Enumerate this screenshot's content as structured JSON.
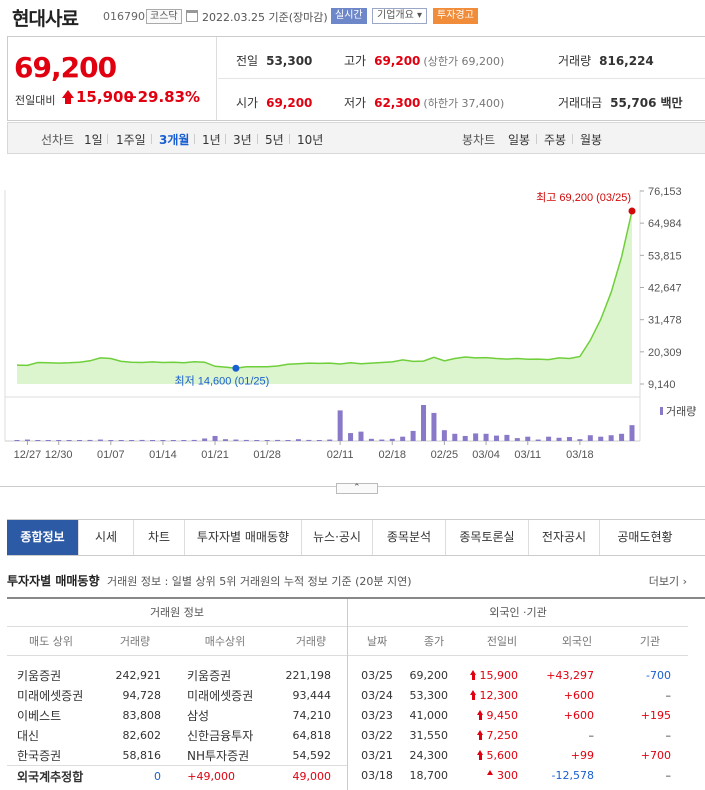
{
  "header": {
    "name": "현대사료",
    "code": "016790",
    "market": "코스닥",
    "date": "2022.03.25",
    "date_suffix": "기준(장마감)",
    "live_badge": "실시간",
    "corp_info": "기업개요 ▾",
    "warning_badge": "투자경고"
  },
  "quote": {
    "price": "69,200",
    "change_label": "전일대비",
    "change": "15,900",
    "change_pct": "+29.83%",
    "prev_close_label": "전일",
    "prev_close": "53,300",
    "high_label": "고가",
    "high": "69,200",
    "upper_limit": "(상한가 69,200)",
    "volume_label": "거래량",
    "volume": "816,224",
    "open_label": "시가",
    "open": "69,200",
    "low_label": "저가",
    "low": "62,300",
    "lower_limit": "(하한가 37,400)",
    "amount_label": "거래대금",
    "amount": "55,706",
    "amount_unit": "백만"
  },
  "period": {
    "line_label": "선차트",
    "line_items": [
      "1일",
      "1주일",
      "3개월",
      "1년",
      "3년",
      "5년",
      "10년"
    ],
    "active": "3개월",
    "candle_label": "봉차트",
    "candle_items": [
      "일봉",
      "주봉",
      "월봉"
    ]
  },
  "chart_data": {
    "type": "area",
    "x": [
      "12/24",
      "12/27",
      "12/28",
      "12/29",
      "12/30",
      "01/03",
      "01/04",
      "01/05",
      "01/06",
      "01/07",
      "01/10",
      "01/11",
      "01/12",
      "01/13",
      "01/14",
      "01/17",
      "01/18",
      "01/19",
      "01/20",
      "01/21",
      "01/24",
      "01/25",
      "01/26",
      "01/27",
      "01/28",
      "02/03",
      "02/04",
      "02/07",
      "02/08",
      "02/09",
      "02/10",
      "02/11",
      "02/14",
      "02/15",
      "02/16",
      "02/17",
      "02/18",
      "02/21",
      "02/22",
      "02/23",
      "02/24",
      "02/25",
      "02/28",
      "03/02",
      "03/03",
      "03/04",
      "03/07",
      "03/08",
      "03/10",
      "03/11",
      "03/14",
      "03/15",
      "03/16",
      "03/17",
      "03/18",
      "03/21",
      "03/22",
      "03/23",
      "03/24",
      "03/25"
    ],
    "series": [
      {
        "values": [
          15700,
          15600,
          16600,
          16500,
          16400,
          16500,
          16700,
          17200,
          18200,
          18000,
          17000,
          16700,
          16600,
          16800,
          16600,
          16700,
          16500,
          16900,
          16700,
          15300,
          15000,
          14600,
          15100,
          15100,
          15100,
          15400,
          16000,
          16200,
          16400,
          16300,
          16400,
          16100,
          16500,
          16200,
          16400,
          16600,
          16800,
          17500,
          17000,
          17100,
          18400,
          17200,
          18000,
          18500,
          18200,
          18300,
          18000,
          17800,
          18000,
          17700,
          17800,
          17600,
          18200,
          18000,
          18700,
          24300,
          31550,
          41000,
          53300,
          69200
        ]
      },
      {
        "name": "거래량",
        "values": [
          0.02,
          0.04,
          0.02,
          0.01,
          0.02,
          0.01,
          0.01,
          0.03,
          0.04,
          0.02,
          0.02,
          0.01,
          0.03,
          0.02,
          0.02,
          0.01,
          0.01,
          0.03,
          0.07,
          0.14,
          0.05,
          0.04,
          0.03,
          0.02,
          0.02,
          0.03,
          0.02,
          0.05,
          0.03,
          0.01,
          0.04,
          0.85,
          0.22,
          0.26,
          0.06,
          0.04,
          0.06,
          0.12,
          0.28,
          1.0,
          0.78,
          0.3,
          0.2,
          0.14,
          0.21,
          0.2,
          0.15,
          0.17,
          0.08,
          0.12,
          0.04,
          0.12,
          0.09,
          0.11,
          0.05,
          0.16,
          0.12,
          0.16,
          0.2,
          0.44
        ]
      }
    ],
    "y_ticks": [
      "76,153",
      "64,984",
      "53,815",
      "42,647",
      "31,478",
      "20,309",
      "9,140"
    ],
    "ylim": [
      9140,
      76153
    ],
    "x_ticks": [
      "12/27",
      "12/30",
      "01/07",
      "01/14",
      "01/21",
      "01/28",
      "02/11",
      "02/18",
      "02/25",
      "03/04",
      "03/11",
      "03/18"
    ],
    "high_annotation": "최고 69,200 (03/25)",
    "low_annotation": "최저 14,600 (01/25)",
    "volume_legend": "거래량",
    "colors": {
      "line": "#6fcf3b",
      "fill": "#dcf5cf",
      "volume": "#8a78c9",
      "high": "#d20a0a",
      "low": "#1a5fd0"
    }
  },
  "collapse_icon": "⌃",
  "tabs": [
    "종합정보",
    "시세",
    "차트",
    "투자자별 매매동향",
    "뉴스·공시",
    "종목분석",
    "종목토론실",
    "전자공시",
    "공매도현황"
  ],
  "active_tab": "종합정보",
  "section": {
    "title": "투자자별 매매동향",
    "desc": "거래원 정보 : 일별 상위 5위 거래원의 누적 정보 기준 (20분 지연)",
    "more": "더보기 ›"
  },
  "broker": {
    "title": "거래원 정보",
    "cols": [
      "매도 상위",
      "거래량",
      "매수상위",
      "거래량"
    ],
    "rows": [
      [
        "키움증권",
        "242,921",
        "키움증권",
        "221,198"
      ],
      [
        "미래에셋증권",
        "94,728",
        "미래에셋증권",
        "93,444"
      ],
      [
        "이베스트",
        "83,808",
        "삼성",
        "74,210"
      ],
      [
        "대신",
        "82,602",
        "신한금융투자",
        "64,818"
      ],
      [
        "한국증권",
        "58,816",
        "NH투자증권",
        "54,592"
      ]
    ],
    "foreign": {
      "label": "외국계추정합",
      "sell": "0",
      "diff": "+49,000",
      "buy": "49,000"
    }
  },
  "foreign_inst": {
    "title": "외국인 ·기관",
    "cols": [
      "날짜",
      "종가",
      "전일비",
      "외국인",
      "기관"
    ],
    "rows": [
      {
        "date": "03/25",
        "close": "69,200",
        "chg": "15,900",
        "arrow": "up-limit",
        "foreign": "+43,297",
        "inst": "-700"
      },
      {
        "date": "03/24",
        "close": "53,300",
        "chg": "12,300",
        "arrow": "up-limit",
        "foreign": "+600",
        "inst": "–"
      },
      {
        "date": "03/23",
        "close": "41,000",
        "chg": "9,450",
        "arrow": "up-limit",
        "foreign": "+600",
        "inst": "+195"
      },
      {
        "date": "03/22",
        "close": "31,550",
        "chg": "7,250",
        "arrow": "up-limit",
        "foreign": "–",
        "inst": "–"
      },
      {
        "date": "03/21",
        "close": "24,300",
        "chg": "5,600",
        "arrow": "up-limit",
        "foreign": "+99",
        "inst": "+700"
      },
      {
        "date": "03/18",
        "close": "18,700",
        "chg": "300",
        "arrow": "up",
        "foreign": "-12,578",
        "inst": "–"
      }
    ]
  }
}
